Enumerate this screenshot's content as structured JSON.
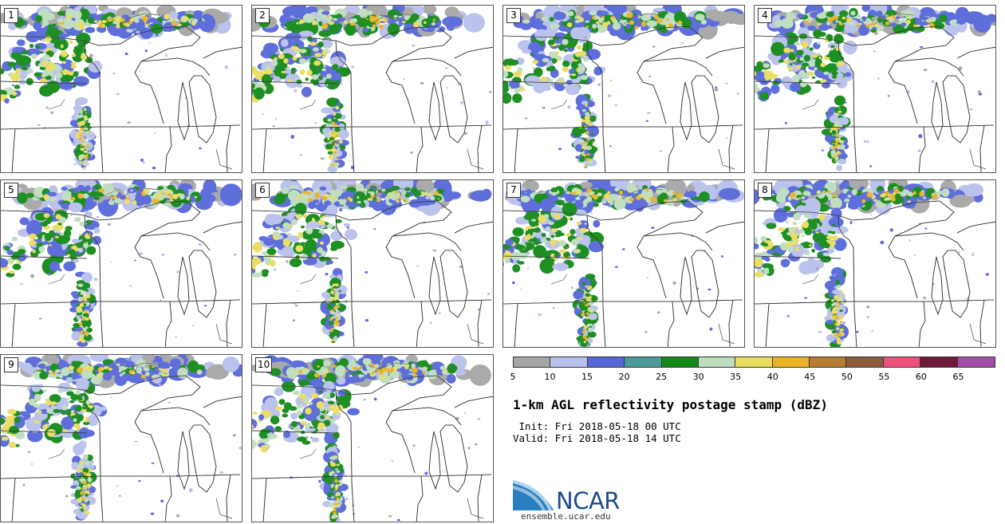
{
  "panels": [
    {
      "label": "1",
      "variant": 0
    },
    {
      "label": "2",
      "variant": 1
    },
    {
      "label": "3",
      "variant": 2
    },
    {
      "label": "4",
      "variant": 3
    },
    {
      "label": "5",
      "variant": 4
    },
    {
      "label": "6",
      "variant": 5
    },
    {
      "label": "7",
      "variant": 6
    },
    {
      "label": "8",
      "variant": 7
    },
    {
      "label": "9",
      "variant": 8
    },
    {
      "label": "10",
      "variant": 9
    }
  ],
  "colorbar": {
    "colors": [
      "#a6a6a6",
      "#b8c0ec",
      "#5667d9",
      "#4b9a9b",
      "#138a18",
      "#bfddbe",
      "#eadd5e",
      "#ecb225",
      "#b77d32",
      "#8c5a3c",
      "#f04f79",
      "#6f1a3b",
      "#a04ea6"
    ],
    "ticks": [
      "5",
      "10",
      "15",
      "20",
      "25",
      "30",
      "35",
      "40",
      "45",
      "50",
      "55",
      "60",
      "65"
    ]
  },
  "title": "1-km AGL reflectivity postage stamp (dBZ)",
  "init_line": " Init: Fri 2018-05-18 00 UTC",
  "valid_line": "Valid: Fri 2018-05-18 14 UTC",
  "logo": {
    "name": "NCAR",
    "site": "ensemble.ucar.edu"
  }
}
